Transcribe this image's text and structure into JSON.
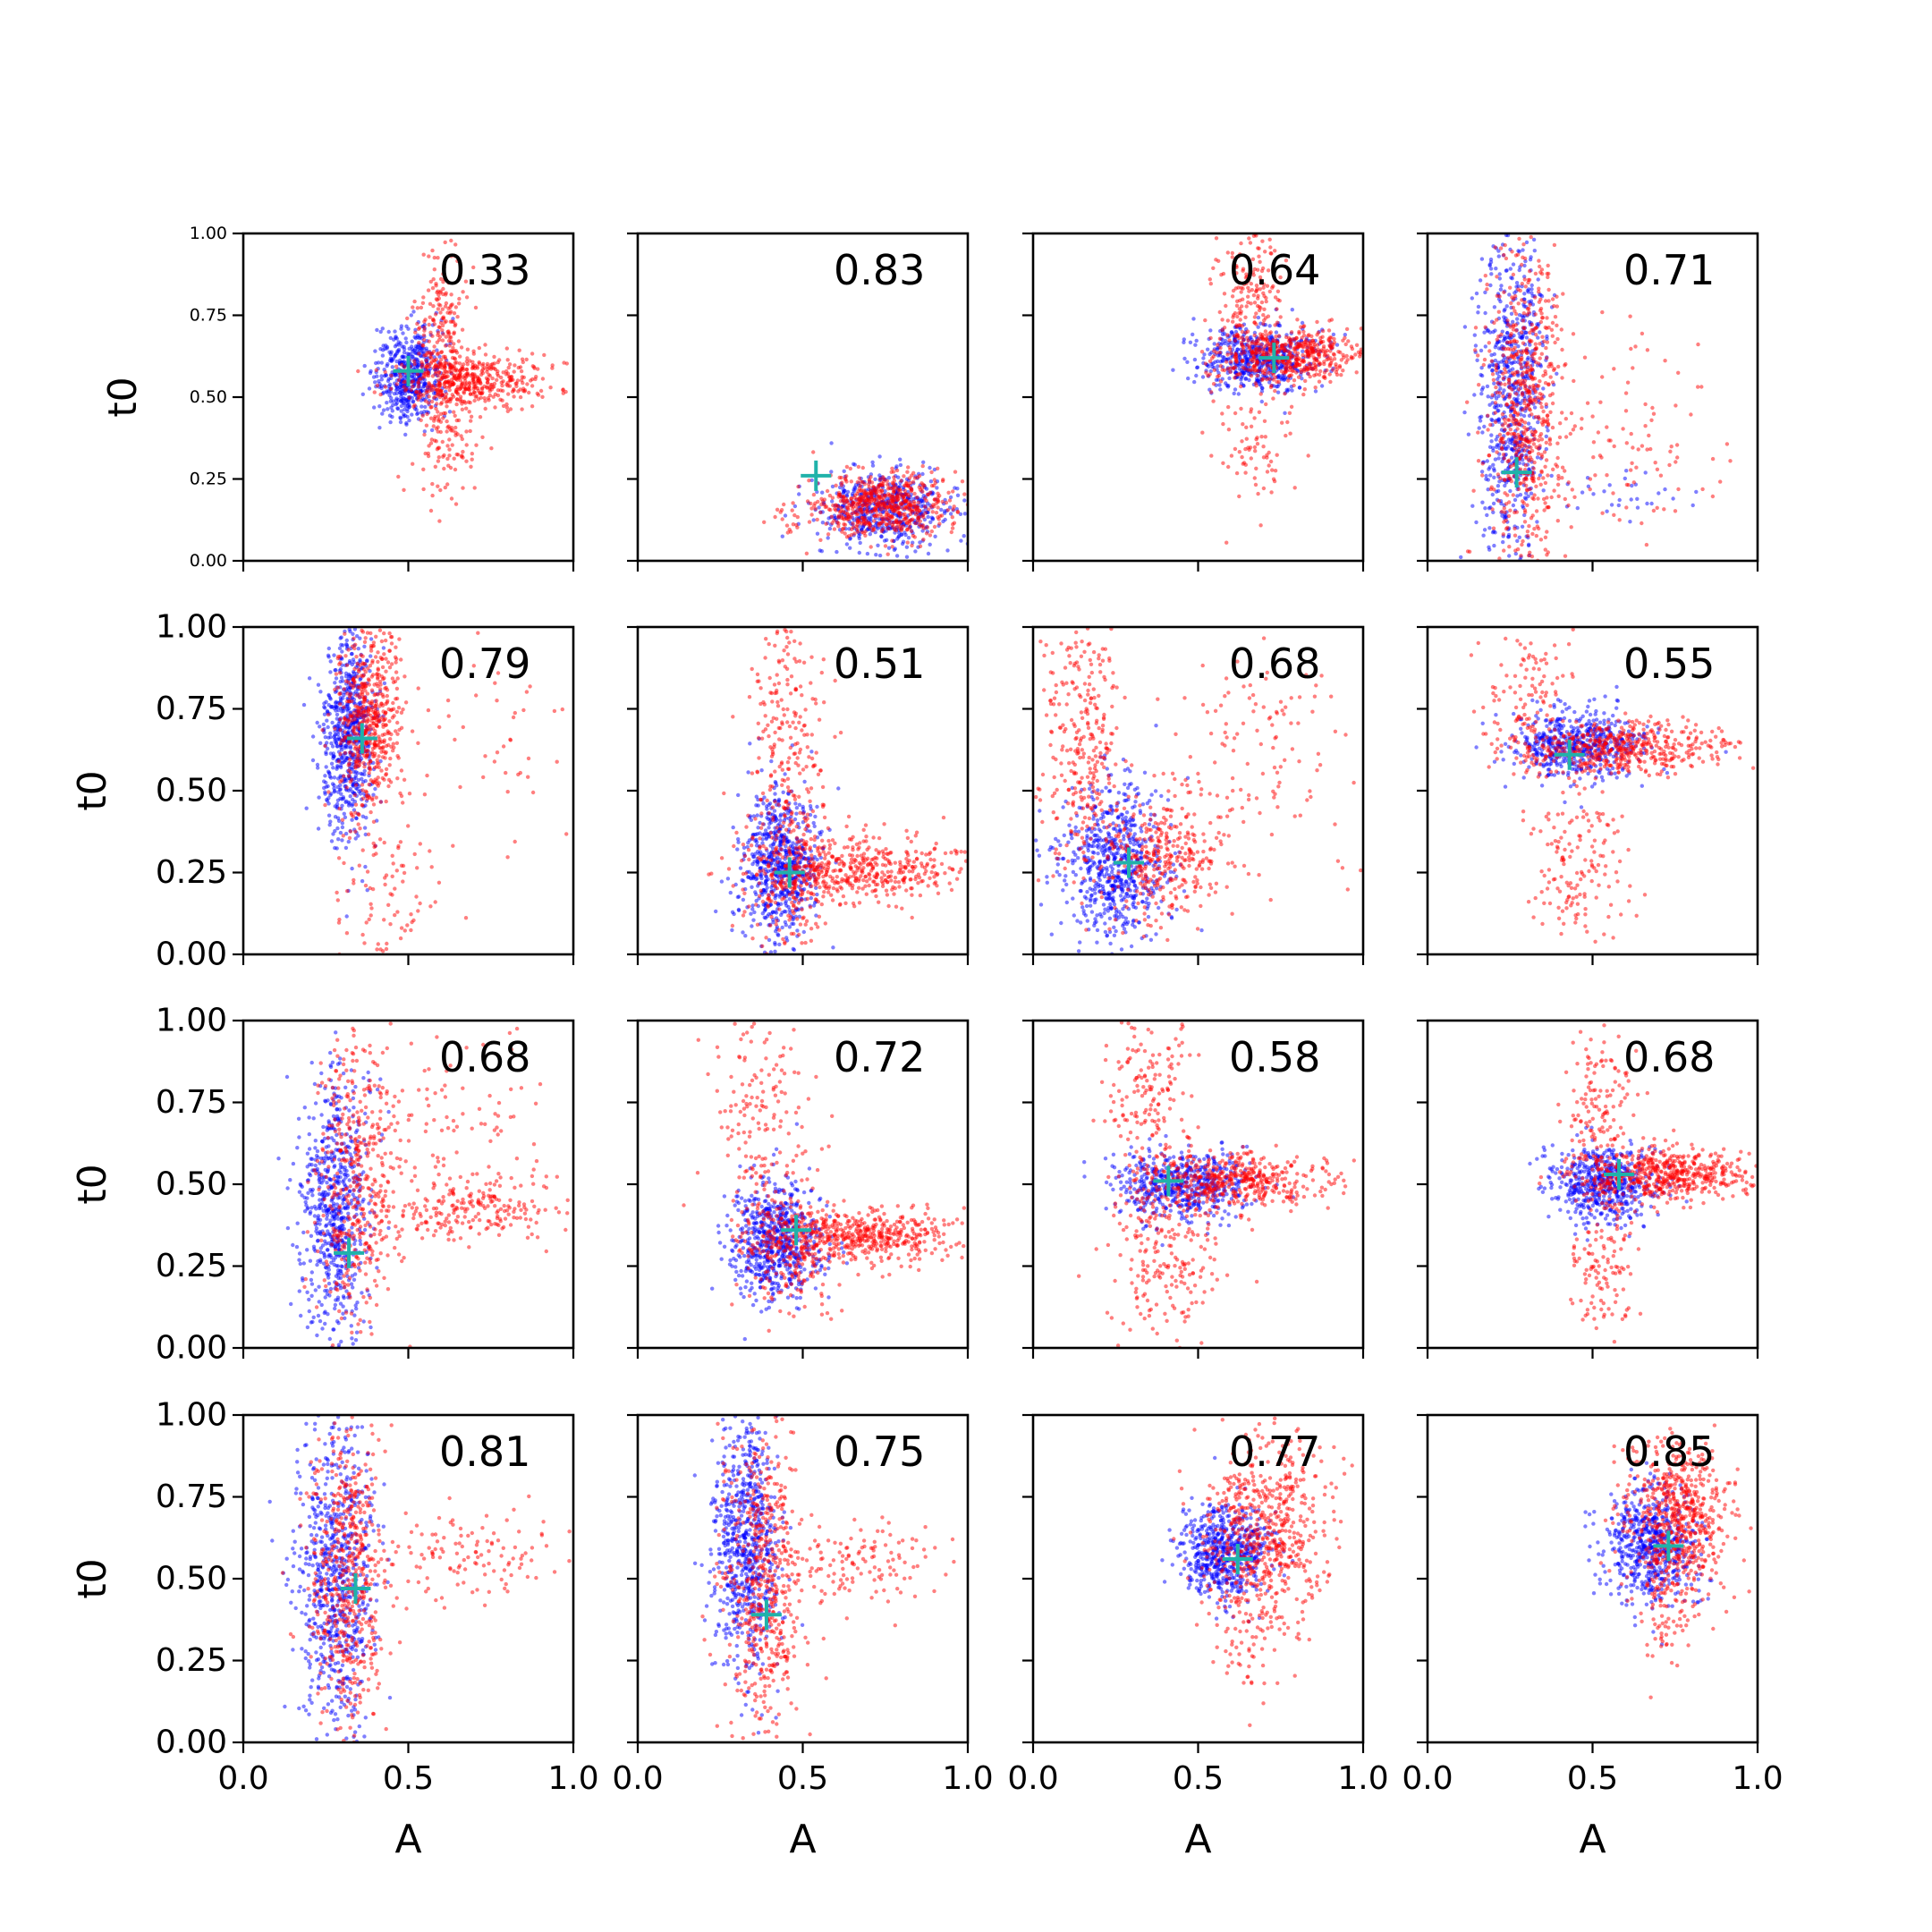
{
  "figure": {
    "xlabel": "A",
    "ylabel": "t0",
    "colors": {
      "series_a": "#0000ff",
      "series_b": "#ff0000",
      "marker": "#20b2aa",
      "axes": "#000000"
    },
    "marker_shape": "plus"
  },
  "chart_data": [
    {
      "type": "scatter",
      "row": 0,
      "col": 0,
      "score": "0.33",
      "marker": {
        "x": 0.5,
        "y": 0.58
      },
      "xlim": [
        0,
        1
      ],
      "ylim": [
        0,
        1
      ],
      "xticks": [
        "0.0",
        "0.5",
        "1.0"
      ],
      "yticks": [
        "0.00",
        "0.25",
        "0.50",
        "0.75",
        "1.00"
      ],
      "series": [
        {
          "color": "blue",
          "clusters": [
            {
              "cx": 0.5,
              "cy": 0.57,
              "sx": 0.05,
              "sy": 0.07,
              "n": 500
            }
          ]
        },
        {
          "color": "red",
          "clusters": [
            {
              "cx": 0.68,
              "cy": 0.55,
              "sx": 0.12,
              "sy": 0.04,
              "n": 450
            },
            {
              "cx": 0.6,
              "cy": 0.7,
              "sx": 0.04,
              "sy": 0.16,
              "n": 220
            },
            {
              "cx": 0.62,
              "cy": 0.38,
              "sx": 0.04,
              "sy": 0.1,
              "n": 120
            }
          ]
        }
      ]
    },
    {
      "type": "scatter",
      "row": 0,
      "col": 1,
      "score": "0.83",
      "marker": {
        "x": 0.54,
        "y": 0.26
      },
      "xlim": [
        0,
        1
      ],
      "ylim": [
        0,
        1
      ],
      "series": [
        {
          "color": "blue",
          "clusters": [
            {
              "cx": 0.75,
              "cy": 0.16,
              "sx": 0.1,
              "sy": 0.06,
              "n": 550
            }
          ]
        },
        {
          "color": "red",
          "clusters": [
            {
              "cx": 0.74,
              "cy": 0.17,
              "sx": 0.1,
              "sy": 0.05,
              "n": 600
            },
            {
              "cx": 0.45,
              "cy": 0.12,
              "sx": 0.04,
              "sy": 0.04,
              "n": 20
            }
          ]
        }
      ]
    },
    {
      "type": "scatter",
      "row": 0,
      "col": 2,
      "score": "0.64",
      "marker": {
        "x": 0.73,
        "y": 0.62
      },
      "xlim": [
        0,
        1
      ],
      "ylim": [
        0,
        1
      ],
      "series": [
        {
          "color": "blue",
          "clusters": [
            {
              "cx": 0.68,
              "cy": 0.62,
              "sx": 0.09,
              "sy": 0.05,
              "n": 550
            }
          ]
        },
        {
          "color": "red",
          "clusters": [
            {
              "cx": 0.78,
              "cy": 0.63,
              "sx": 0.12,
              "sy": 0.04,
              "n": 500
            },
            {
              "cx": 0.66,
              "cy": 0.82,
              "sx": 0.05,
              "sy": 0.12,
              "n": 180
            },
            {
              "cx": 0.68,
              "cy": 0.38,
              "sx": 0.06,
              "sy": 0.1,
              "n": 90
            }
          ]
        }
      ]
    },
    {
      "type": "scatter",
      "row": 0,
      "col": 3,
      "score": "0.71",
      "marker": {
        "x": 0.27,
        "y": 0.27
      },
      "xlim": [
        0,
        1
      ],
      "ylim": [
        0,
        1
      ],
      "series": [
        {
          "color": "blue",
          "clusters": [
            {
              "cx": 0.26,
              "cy": 0.5,
              "sx": 0.05,
              "sy": 0.26,
              "n": 700
            },
            {
              "cx": 0.62,
              "cy": 0.2,
              "sx": 0.15,
              "sy": 0.04,
              "n": 30
            }
          ]
        },
        {
          "color": "red",
          "clusters": [
            {
              "cx": 0.3,
              "cy": 0.45,
              "sx": 0.06,
              "sy": 0.28,
              "n": 650
            },
            {
              "cx": 0.6,
              "cy": 0.35,
              "sx": 0.18,
              "sy": 0.2,
              "n": 110
            }
          ]
        }
      ]
    },
    {
      "type": "scatter",
      "row": 1,
      "col": 0,
      "score": "0.79",
      "marker": {
        "x": 0.36,
        "y": 0.66
      },
      "xlim": [
        0,
        1
      ],
      "ylim": [
        0,
        1
      ],
      "series": [
        {
          "color": "blue",
          "clusters": [
            {
              "cx": 0.32,
              "cy": 0.67,
              "sx": 0.04,
              "sy": 0.16,
              "n": 650
            }
          ]
        },
        {
          "color": "red",
          "clusters": [
            {
              "cx": 0.38,
              "cy": 0.72,
              "sx": 0.05,
              "sy": 0.14,
              "n": 550
            },
            {
              "cx": 0.45,
              "cy": 0.18,
              "sx": 0.08,
              "sy": 0.12,
              "n": 100
            },
            {
              "cx": 0.75,
              "cy": 0.62,
              "sx": 0.12,
              "sy": 0.15,
              "n": 40
            }
          ]
        }
      ]
    },
    {
      "type": "scatter",
      "row": 1,
      "col": 1,
      "score": "0.51",
      "marker": {
        "x": 0.46,
        "y": 0.25
      },
      "xlim": [
        0,
        1
      ],
      "ylim": [
        0,
        1
      ],
      "series": [
        {
          "color": "blue",
          "clusters": [
            {
              "cx": 0.43,
              "cy": 0.27,
              "sx": 0.06,
              "sy": 0.11,
              "n": 650
            }
          ]
        },
        {
          "color": "red",
          "clusters": [
            {
              "cx": 0.68,
              "cy": 0.26,
              "sx": 0.16,
              "sy": 0.05,
              "n": 450
            },
            {
              "cx": 0.45,
              "cy": 0.72,
              "sx": 0.06,
              "sy": 0.18,
              "n": 180
            },
            {
              "cx": 0.47,
              "cy": 0.25,
              "sx": 0.07,
              "sy": 0.12,
              "n": 250
            }
          ]
        }
      ]
    },
    {
      "type": "scatter",
      "row": 1,
      "col": 2,
      "score": "0.68",
      "marker": {
        "x": 0.29,
        "y": 0.28
      },
      "xlim": [
        0,
        1
      ],
      "ylim": [
        0,
        1
      ],
      "series": [
        {
          "color": "blue",
          "clusters": [
            {
              "cx": 0.25,
              "cy": 0.28,
              "sx": 0.08,
              "sy": 0.12,
              "n": 650
            }
          ]
        },
        {
          "color": "red",
          "clusters": [
            {
              "cx": 0.15,
              "cy": 0.65,
              "sx": 0.06,
              "sy": 0.22,
              "n": 300
            },
            {
              "cx": 0.38,
              "cy": 0.3,
              "sx": 0.1,
              "sy": 0.1,
              "n": 350
            },
            {
              "cx": 0.7,
              "cy": 0.6,
              "sx": 0.18,
              "sy": 0.2,
              "n": 120
            }
          ]
        }
      ]
    },
    {
      "type": "scatter",
      "row": 1,
      "col": 3,
      "score": "0.55",
      "marker": {
        "x": 0.43,
        "y": 0.61
      },
      "xlim": [
        0,
        1
      ],
      "ylim": [
        0,
        1
      ],
      "series": [
        {
          "color": "blue",
          "clusters": [
            {
              "cx": 0.45,
              "cy": 0.64,
              "sx": 0.1,
              "sy": 0.05,
              "n": 550
            }
          ]
        },
        {
          "color": "red",
          "clusters": [
            {
              "cx": 0.58,
              "cy": 0.63,
              "sx": 0.15,
              "sy": 0.04,
              "n": 500
            },
            {
              "cx": 0.45,
              "cy": 0.28,
              "sx": 0.08,
              "sy": 0.14,
              "n": 160
            },
            {
              "cx": 0.3,
              "cy": 0.8,
              "sx": 0.06,
              "sy": 0.1,
              "n": 100
            }
          ]
        }
      ]
    },
    {
      "type": "scatter",
      "row": 2,
      "col": 0,
      "score": "0.68",
      "marker": {
        "x": 0.32,
        "y": 0.29
      },
      "xlim": [
        0,
        1
      ],
      "ylim": [
        0,
        1
      ],
      "series": [
        {
          "color": "blue",
          "clusters": [
            {
              "cx": 0.28,
              "cy": 0.42,
              "sx": 0.05,
              "sy": 0.2,
              "n": 650
            }
          ]
        },
        {
          "color": "red",
          "clusters": [
            {
              "cx": 0.35,
              "cy": 0.5,
              "sx": 0.06,
              "sy": 0.24,
              "n": 450
            },
            {
              "cx": 0.68,
              "cy": 0.42,
              "sx": 0.14,
              "sy": 0.05,
              "n": 220
            },
            {
              "cx": 0.7,
              "cy": 0.72,
              "sx": 0.15,
              "sy": 0.15,
              "n": 80
            }
          ]
        }
      ]
    },
    {
      "type": "scatter",
      "row": 2,
      "col": 1,
      "score": "0.72",
      "marker": {
        "x": 0.48,
        "y": 0.36
      },
      "xlim": [
        0,
        1
      ],
      "ylim": [
        0,
        1
      ],
      "series": [
        {
          "color": "blue",
          "clusters": [
            {
              "cx": 0.42,
              "cy": 0.33,
              "sx": 0.07,
              "sy": 0.09,
              "n": 650
            }
          ]
        },
        {
          "color": "red",
          "clusters": [
            {
              "cx": 0.68,
              "cy": 0.34,
              "sx": 0.15,
              "sy": 0.04,
              "n": 500
            },
            {
              "cx": 0.38,
              "cy": 0.68,
              "sx": 0.08,
              "sy": 0.18,
              "n": 180
            },
            {
              "cx": 0.48,
              "cy": 0.3,
              "sx": 0.08,
              "sy": 0.1,
              "n": 200
            }
          ]
        }
      ]
    },
    {
      "type": "scatter",
      "row": 2,
      "col": 2,
      "score": "0.58",
      "marker": {
        "x": 0.41,
        "y": 0.51
      },
      "xlim": [
        0,
        1
      ],
      "ylim": [
        0,
        1
      ],
      "series": [
        {
          "color": "blue",
          "clusters": [
            {
              "cx": 0.45,
              "cy": 0.5,
              "sx": 0.1,
              "sy": 0.05,
              "n": 550
            }
          ]
        },
        {
          "color": "red",
          "clusters": [
            {
              "cx": 0.62,
              "cy": 0.51,
              "sx": 0.14,
              "sy": 0.04,
              "n": 450
            },
            {
              "cx": 0.4,
              "cy": 0.3,
              "sx": 0.08,
              "sy": 0.16,
              "n": 250
            },
            {
              "cx": 0.36,
              "cy": 0.78,
              "sx": 0.07,
              "sy": 0.12,
              "n": 160
            }
          ]
        }
      ]
    },
    {
      "type": "scatter",
      "row": 2,
      "col": 3,
      "score": "0.68",
      "marker": {
        "x": 0.58,
        "y": 0.53
      },
      "xlim": [
        0,
        1
      ],
      "ylim": [
        0,
        1
      ],
      "series": [
        {
          "color": "blue",
          "clusters": [
            {
              "cx": 0.53,
              "cy": 0.5,
              "sx": 0.08,
              "sy": 0.06,
              "n": 550
            }
          ]
        },
        {
          "color": "red",
          "clusters": [
            {
              "cx": 0.72,
              "cy": 0.53,
              "sx": 0.13,
              "sy": 0.04,
              "n": 550
            },
            {
              "cx": 0.53,
              "cy": 0.72,
              "sx": 0.05,
              "sy": 0.14,
              "n": 150
            },
            {
              "cx": 0.53,
              "cy": 0.25,
              "sx": 0.05,
              "sy": 0.12,
              "n": 120
            }
          ]
        }
      ]
    },
    {
      "type": "scatter",
      "row": 3,
      "col": 0,
      "score": "0.81",
      "marker": {
        "x": 0.34,
        "y": 0.47
      },
      "xlim": [
        0,
        1
      ],
      "ylim": [
        0,
        1
      ],
      "series": [
        {
          "color": "blue",
          "clusters": [
            {
              "cx": 0.28,
              "cy": 0.5,
              "sx": 0.06,
              "sy": 0.25,
              "n": 700
            }
          ]
        },
        {
          "color": "red",
          "clusters": [
            {
              "cx": 0.32,
              "cy": 0.5,
              "sx": 0.06,
              "sy": 0.26,
              "n": 550
            },
            {
              "cx": 0.7,
              "cy": 0.58,
              "sx": 0.14,
              "sy": 0.07,
              "n": 120
            }
          ]
        }
      ]
    },
    {
      "type": "scatter",
      "row": 3,
      "col": 1,
      "score": "0.75",
      "marker": {
        "x": 0.39,
        "y": 0.39
      },
      "xlim": [
        0,
        1
      ],
      "ylim": [
        0,
        1
      ],
      "series": [
        {
          "color": "blue",
          "clusters": [
            {
              "cx": 0.33,
              "cy": 0.6,
              "sx": 0.05,
              "sy": 0.2,
              "n": 700
            }
          ]
        },
        {
          "color": "red",
          "clusters": [
            {
              "cx": 0.38,
              "cy": 0.5,
              "sx": 0.06,
              "sy": 0.25,
              "n": 550
            },
            {
              "cx": 0.7,
              "cy": 0.55,
              "sx": 0.13,
              "sy": 0.06,
              "n": 120
            }
          ]
        }
      ]
    },
    {
      "type": "scatter",
      "row": 3,
      "col": 2,
      "score": "0.77",
      "marker": {
        "x": 0.62,
        "y": 0.56
      },
      "xlim": [
        0,
        1
      ],
      "ylim": [
        0,
        1
      ],
      "series": [
        {
          "color": "blue",
          "clusters": [
            {
              "cx": 0.58,
              "cy": 0.58,
              "sx": 0.07,
              "sy": 0.07,
              "n": 600
            }
          ]
        },
        {
          "color": "red",
          "clusters": [
            {
              "cx": 0.7,
              "cy": 0.65,
              "sx": 0.1,
              "sy": 0.14,
              "n": 600
            },
            {
              "cx": 0.65,
              "cy": 0.35,
              "sx": 0.05,
              "sy": 0.1,
              "n": 80
            }
          ]
        }
      ]
    },
    {
      "type": "scatter",
      "row": 3,
      "col": 3,
      "score": "0.85",
      "marker": {
        "x": 0.73,
        "y": 0.6
      },
      "xlim": [
        0,
        1
      ],
      "ylim": [
        0,
        1
      ],
      "series": [
        {
          "color": "blue",
          "clusters": [
            {
              "cx": 0.68,
              "cy": 0.6,
              "sx": 0.07,
              "sy": 0.09,
              "n": 600
            }
          ]
        },
        {
          "color": "red",
          "clusters": [
            {
              "cx": 0.76,
              "cy": 0.68,
              "sx": 0.08,
              "sy": 0.13,
              "n": 650
            },
            {
              "cx": 0.72,
              "cy": 0.4,
              "sx": 0.04,
              "sy": 0.08,
              "n": 60
            }
          ]
        }
      ]
    }
  ]
}
